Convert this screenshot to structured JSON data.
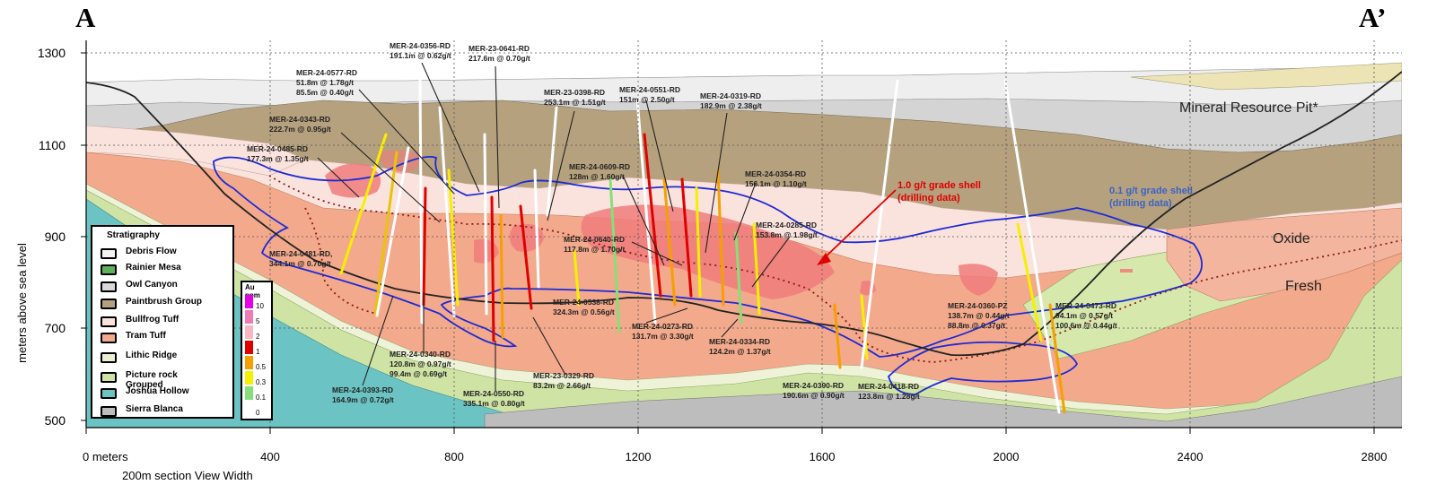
{
  "section": {
    "start_label": "A",
    "end_label": "A’",
    "x_axis": {
      "ticks": [
        "0 meters",
        "400",
        "800",
        "1200",
        "1600",
        "2000",
        "2400",
        "2800"
      ],
      "note": "200m section View Width"
    },
    "y_axis": {
      "label": "meters above sea level",
      "ticks": [
        "1300",
        "1100",
        "900",
        "700",
        "500"
      ]
    },
    "zone_labels": [
      "Mineral Resource Pit*",
      "Oxide",
      "Fresh"
    ],
    "shell_high": {
      "text": "1.0 g/t grade shell\n(drilling data)",
      "color": "#e00000"
    },
    "shell_low": {
      "text": "0.1 g/t grade shell\n(drilling data)",
      "color": "#3a63c4"
    }
  },
  "colors": {
    "grade_shell_line": "#1d2ad6",
    "pit_line": "#222222",
    "callout_text": "#222222"
  },
  "stratigraphy": {
    "title": "Stratigraphy",
    "units": [
      {
        "name": "Debris Flow",
        "color": "#f4f4f4"
      },
      {
        "name": "Rainier Mesa",
        "color": "#5fb05a"
      },
      {
        "name": "Owl Canyon",
        "color": "#d8d8d8"
      },
      {
        "name": "Paintbrush  Group",
        "color": "#b5a17e"
      },
      {
        "name": "Bullfrog Tuff",
        "color": "#fbe3dd"
      },
      {
        "name": "Tram Tuff",
        "color": "#f3a98b"
      },
      {
        "name": "Lithic Ridge",
        "color": "#e9f0d4"
      },
      {
        "name": "Picture rock\nGrouped",
        "color": "#cfe3a4"
      },
      {
        "name": "Joshua Hollow",
        "color": "#6cc3c3"
      },
      {
        "name": "Sierra Blanca",
        "color": "#bdbdbd"
      }
    ]
  },
  "au_legend": {
    "title": "Au ppm",
    "bins": [
      {
        "label": "10",
        "color": "#e600e6"
      },
      {
        "label": "5",
        "color": "#f07ab4"
      },
      {
        "label": "2",
        "color": "#f7b6c2"
      },
      {
        "label": "1",
        "color": "#e00000"
      },
      {
        "label": "0.5",
        "color": "#f5a000"
      },
      {
        "label": "0.3",
        "color": "#f5f000"
      },
      {
        "label": "0.1",
        "color": "#86e07a"
      },
      {
        "label": "0",
        "color": "#ffffff"
      }
    ]
  },
  "drill_callouts": [
    {
      "text": "MER-24-0356-RD\n191.1m @ 0.62g/t"
    },
    {
      "text": "MER-23-0641-RD\n217.6m @ 0.70g/t"
    },
    {
      "text": "MER-24-0577-RD\n51.8m @ 1.78g/t\n85.5m @ 0.40g/t"
    },
    {
      "text": "MER-23-0398-RD\n253.1m @ 1.51g/t"
    },
    {
      "text": "MER-24-0551-RD\n151m @ 2.50g/t"
    },
    {
      "text": "MER-24-0319-RD\n182.9m @ 2.38g/t"
    },
    {
      "text": "MER-24-0343-RD\n222.7m @ 0.95g/t"
    },
    {
      "text": "MER-24-0485-RD\n177.3m @ 1.35g/t"
    },
    {
      "text": "MER-24-0609-RD\n128m @ 1.60g/t"
    },
    {
      "text": "MER-24-0354-RD\n156.1m @ 1.10g/t"
    },
    {
      "text": "MER-24-0285-RD\n153.8m @ 1.98g/t"
    },
    {
      "text": "MER-24-0640-RD\n117.8m @ 1.70g/t"
    },
    {
      "text": "MER-24-0481-RD,\n344.1m @ 0.70g/t"
    },
    {
      "text": "MER-24-0538-RD\n324.3m @ 0.56g/t"
    },
    {
      "text": "MER-24-0273-RD\n131.7m @ 3.30g/t"
    },
    {
      "text": "MER-24-0334-RD\n124.2m @ 1.37g/t"
    },
    {
      "text": "MER-24-0340-RD\n120.8m @ 0.97g/t\n99.4m @ 0.69g/t"
    },
    {
      "text": "MER-23-0329-RD\n83.2m @ 2.66g/t"
    },
    {
      "text": "MER-24-0393-RD\n164.9m @ 0.72g/t"
    },
    {
      "text": "MER-24-0550-RD\n335.1m @ 0.80g/t"
    },
    {
      "text": "MER-24-0390-RD\n190.6m @ 0.90g/t"
    },
    {
      "text": "MER-24-0418-RD\n123.8m @ 1.28g/t"
    },
    {
      "text": "MER-24-0360-PZ\n138.7m @ 0.44g/t\n88.8m @ 0.37g/t"
    },
    {
      "text": "MER-24-0473-RD\n94.1m @ 0.57g/t\n100.6m @ 0.44g/t"
    }
  ]
}
